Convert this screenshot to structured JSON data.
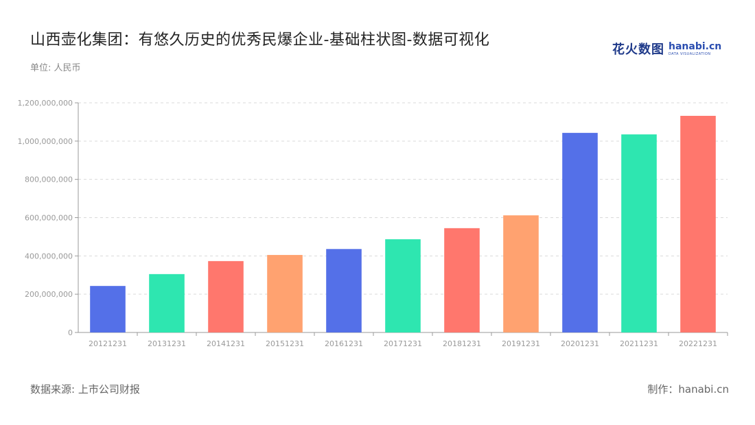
{
  "header": {
    "title": "山西壶化集团：有悠久历史的优秀民爆企业-基础柱状图-数据可视化",
    "unit_label": "单位: 人民币"
  },
  "logo": {
    "cn": "花火数图",
    "en_main": "hanabi.cn",
    "en_sub": "DATA VISUALIZATION"
  },
  "footer": {
    "source": "数据来源: 上市公司财报",
    "maker": "制作：hanabi.cn"
  },
  "colors": {
    "palette": [
      "#5470e8",
      "#2ee6b0",
      "#ff776d",
      "#ffa270"
    ],
    "grid": "#d9d9d9",
    "axis": "#999999",
    "tick_text": "#999999"
  },
  "chart_data": {
    "type": "bar",
    "categories": [
      "20121231",
      "20131231",
      "20141231",
      "20151231",
      "20161231",
      "20171231",
      "20181231",
      "20191231",
      "20201231",
      "20211231",
      "20221231"
    ],
    "values": [
      243000000,
      305000000,
      373000000,
      405000000,
      436000000,
      487000000,
      545000000,
      612000000,
      1043000000,
      1035000000,
      1132000000
    ],
    "yticks": [
      "0",
      "200,000,000",
      "400,000,000",
      "600,000,000",
      "800,000,000",
      "1,000,000,000",
      "1,200,000,000"
    ],
    "ylim": [
      0,
      1200000000
    ],
    "grid": true
  }
}
